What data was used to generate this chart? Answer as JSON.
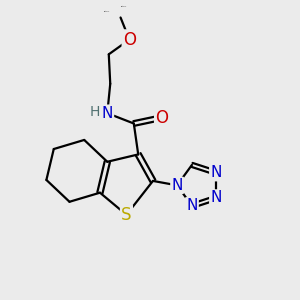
{
  "bg_color": "#ebebeb",
  "atom_colors": {
    "C": "#000000",
    "N": "#0000cc",
    "O": "#cc0000",
    "S": "#bbaa00",
    "H": "#507070"
  },
  "bond_color": "#000000",
  "bond_width": 1.6,
  "figsize": [
    3.0,
    3.0
  ],
  "dpi": 100
}
